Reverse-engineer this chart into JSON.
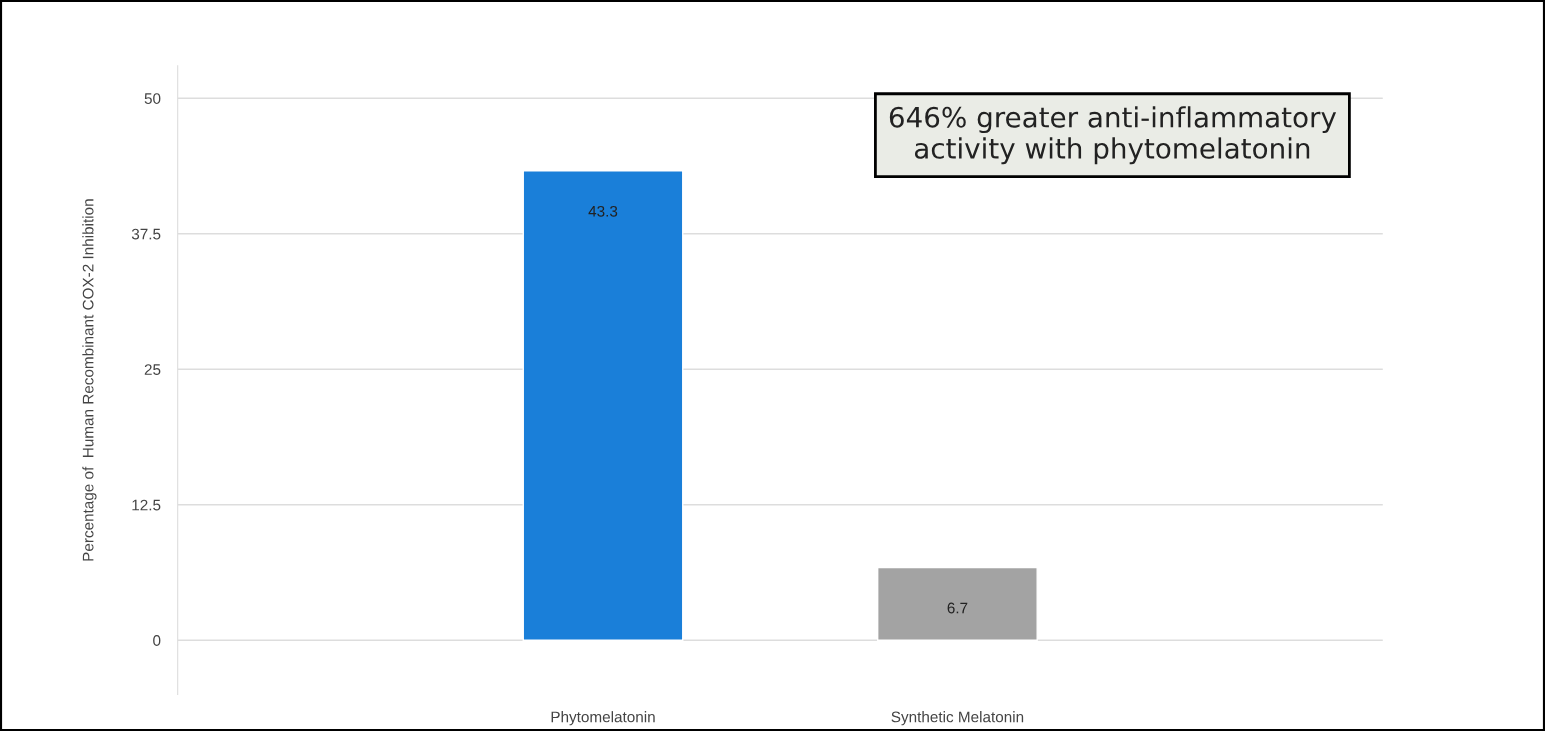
{
  "chart_data": {
    "type": "bar",
    "ylabel": "Percentage of  Human Recombinant COX-2 Inhibition",
    "categories": [
      "Phytomelatonin",
      "Synthetic Melatonin"
    ],
    "values": [
      43.3,
      6.7
    ],
    "colors": [
      "#1a7fd9",
      "#a3a3a3"
    ],
    "ylim": [
      -5,
      53
    ],
    "yticks": [
      0,
      12.5,
      25,
      37.5,
      50
    ],
    "grid": "y",
    "data_labels": true,
    "annotations": [
      "646% greater anti-inflammatory\nactivity with phytomelatonin"
    ]
  }
}
